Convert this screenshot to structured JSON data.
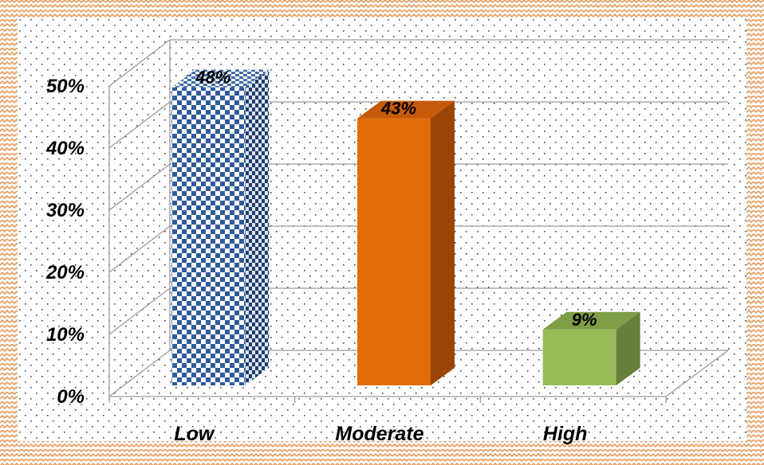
{
  "chart_data": {
    "type": "bar",
    "categories": [
      "Low",
      "Moderate",
      "High"
    ],
    "values": [
      48,
      43,
      9
    ],
    "value_labels": [
      "48%",
      "43%",
      "9%"
    ],
    "ylim": [
      0,
      50
    ],
    "yticks": [
      {
        "value": 0,
        "label": "0%"
      },
      {
        "value": 10,
        "label": "10%"
      },
      {
        "value": 20,
        "label": "20%"
      },
      {
        "value": 30,
        "label": "30%"
      },
      {
        "value": 40,
        "label": "40%"
      },
      {
        "value": 50,
        "label": "50%"
      }
    ],
    "grid": true,
    "style": "3d-column",
    "colors": {
      "low": "#2E5C9A",
      "low_pattern": "checkerboard",
      "moderate": "#E36C0A",
      "high": "#9BBB59",
      "frame_border": "#E69A5A",
      "plot_pattern": "dotted"
    }
  }
}
